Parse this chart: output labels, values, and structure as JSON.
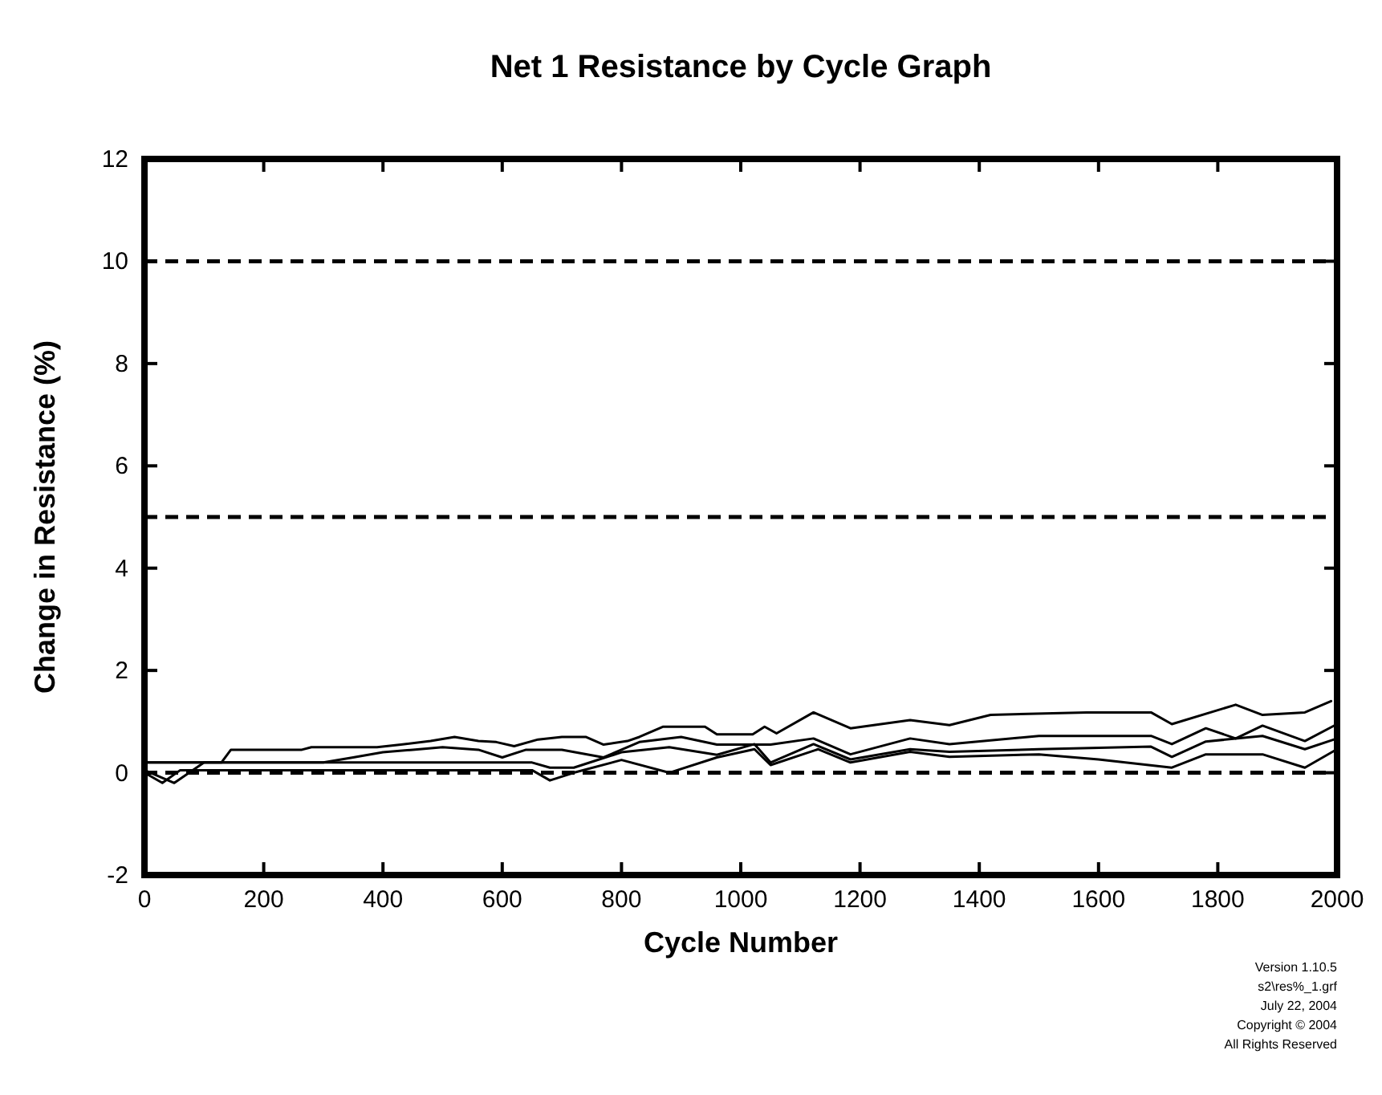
{
  "chart_data": {
    "type": "line",
    "title": "Net 1 Resistance by Cycle Graph",
    "xlabel": "Cycle Number",
    "ylabel": "Change in Resistance (%)",
    "xlim": [
      0,
      2000
    ],
    "xticks": [
      0,
      200,
      400,
      600,
      800,
      1000,
      1200,
      1400,
      1600,
      1800,
      2000
    ],
    "ylim": [
      -2,
      12
    ],
    "yticks": [
      -2,
      0,
      2,
      4,
      6,
      8,
      10,
      12
    ],
    "marker": "none",
    "line_style": "solid",
    "ref_lines": [
      {
        "axis": "y",
        "value": 10,
        "line_style": "dashed",
        "color": "#000000"
      },
      {
        "axis": "y",
        "value": 5,
        "line_style": "dashed",
        "color": "#000000"
      },
      {
        "axis": "y",
        "value": 0,
        "line_style": "dashed",
        "color": "#000000"
      }
    ],
    "series": [
      {
        "color": "#000000",
        "x": [
          0,
          129,
          145,
          264,
          280,
          390,
          430,
          480,
          520,
          560,
          590,
          620,
          660,
          700,
          740,
          770,
          810,
          830,
          870,
          940,
          960,
          1020,
          1040,
          1060,
          1122,
          1184,
          1284,
          1350,
          1419,
          1580,
          1688,
          1723,
          1830,
          1875,
          1946,
          1990
        ],
        "values": [
          0.2,
          0.2,
          0.45,
          0.45,
          0.5,
          0.5,
          0.55,
          0.62,
          0.7,
          0.62,
          0.6,
          0.52,
          0.65,
          0.7,
          0.7,
          0.55,
          0.62,
          0.7,
          0.9,
          0.9,
          0.75,
          0.75,
          0.9,
          0.77,
          1.18,
          0.87,
          1.03,
          0.93,
          1.13,
          1.18,
          1.18,
          0.95,
          1.33,
          1.13,
          1.18,
          1.4
        ]
      },
      {
        "color": "#000000",
        "x": [
          0,
          300,
          350,
          400,
          450,
          500,
          560,
          600,
          640,
          700,
          770,
          830,
          900,
          960,
          1020,
          1050,
          1122,
          1184,
          1284,
          1350,
          1500,
          1688,
          1723,
          1780,
          1830,
          1875,
          1946,
          2000
        ],
        "values": [
          0.2,
          0.2,
          0.3,
          0.4,
          0.45,
          0.5,
          0.45,
          0.3,
          0.45,
          0.45,
          0.3,
          0.6,
          0.7,
          0.55,
          0.55,
          0.55,
          0.67,
          0.36,
          0.67,
          0.56,
          0.72,
          0.72,
          0.56,
          0.87,
          0.67,
          0.92,
          0.62,
          0.95
        ]
      },
      {
        "color": "#000000",
        "x": [
          0,
          50,
          100,
          300,
          650,
          680,
          720,
          800,
          880,
          960,
          1023,
          1050,
          1122,
          1184,
          1284,
          1350,
          1500,
          1688,
          1723,
          1780,
          1875,
          1946,
          2000
        ],
        "values": [
          0.05,
          -0.2,
          0.2,
          0.2,
          0.2,
          0.1,
          0.1,
          0.4,
          0.5,
          0.35,
          0.56,
          0.2,
          0.56,
          0.26,
          0.46,
          0.41,
          0.46,
          0.51,
          0.31,
          0.61,
          0.72,
          0.46,
          0.67
        ]
      },
      {
        "color": "#000000",
        "x": [
          0,
          30,
          60,
          200,
          650,
          680,
          720,
          800,
          880,
          960,
          1023,
          1050,
          1130,
          1184,
          1284,
          1350,
          1500,
          1600,
          1723,
          1780,
          1875,
          1946,
          2000
        ],
        "values": [
          0,
          -0.2,
          0.05,
          0.05,
          0.05,
          -0.15,
          0,
          0.25,
          0,
          0.3,
          0.46,
          0.15,
          0.46,
          0.2,
          0.41,
          0.31,
          0.36,
          0.26,
          0.1,
          0.36,
          0.36,
          0.1,
          0.46
        ]
      }
    ],
    "annotations": [
      "Version 1.10.5",
      "s2\\res%_1.grf",
      "July 22, 2004",
      "Copyright © 2004",
      "All Rights Reserved"
    ]
  }
}
